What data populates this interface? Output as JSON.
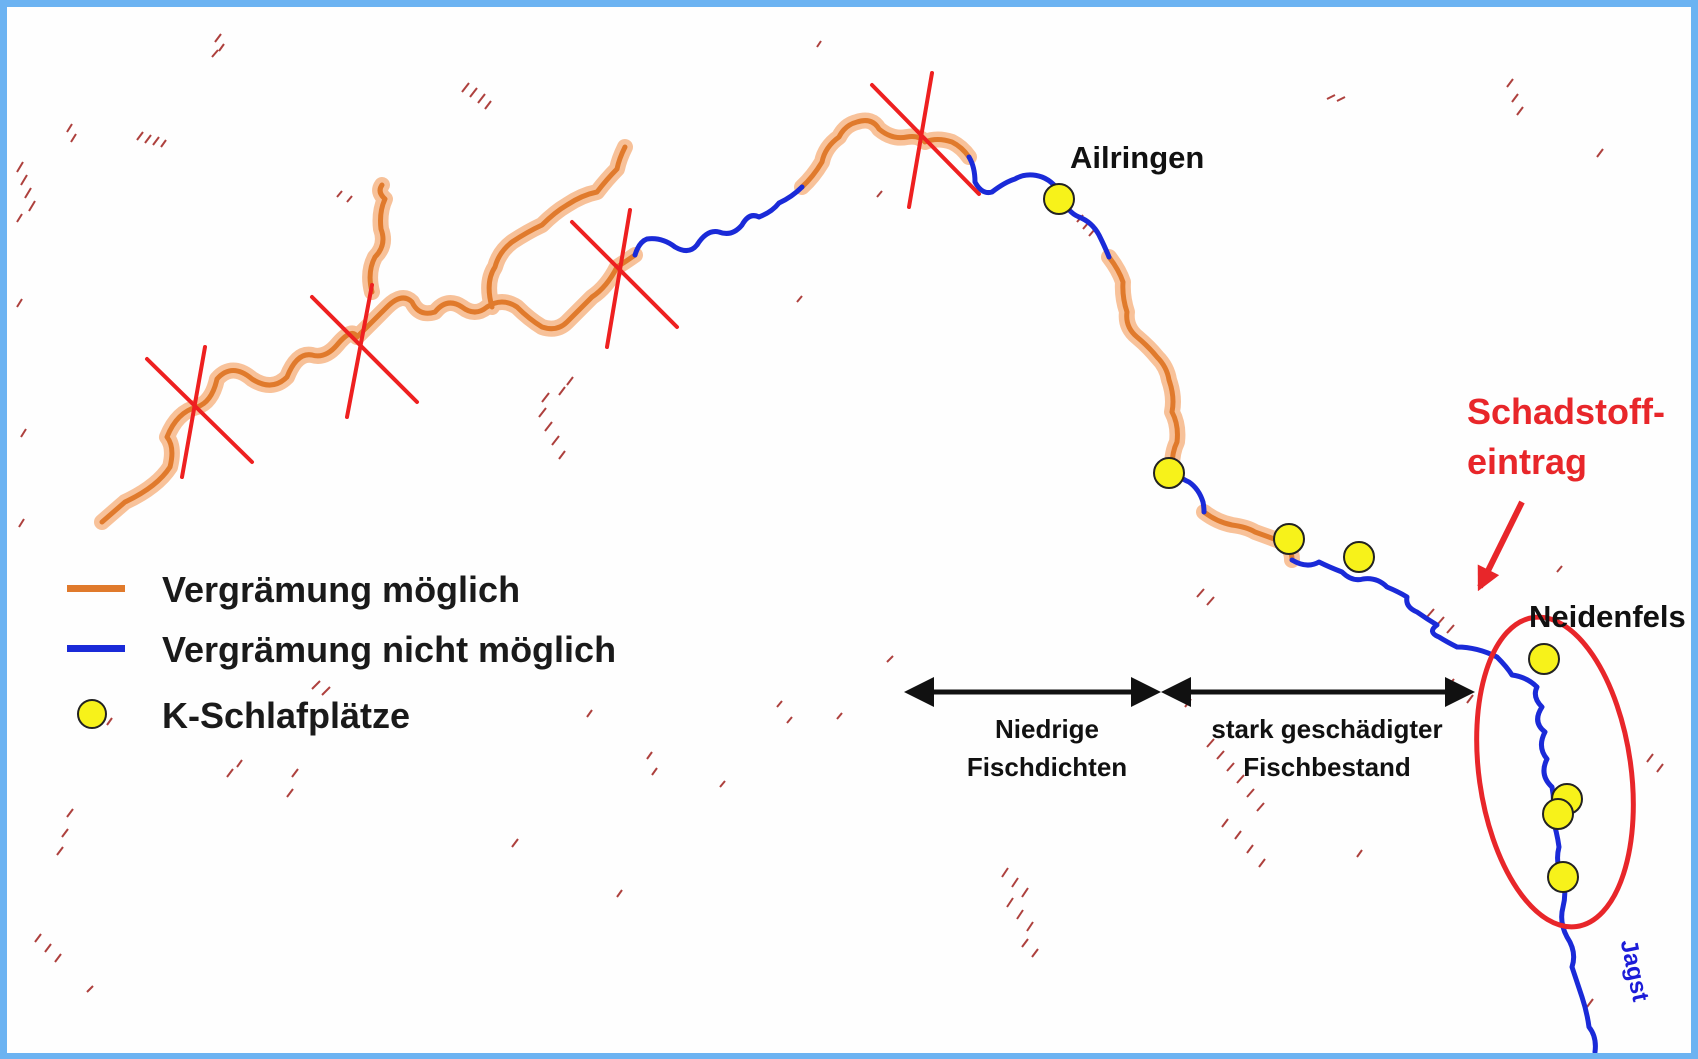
{
  "places": {
    "ailringen": "Ailringen",
    "neidenfels": "Neidenfels"
  },
  "river_name": "Jagst",
  "legend": {
    "possible": {
      "label": "Vergrämung möglich",
      "color": "#e07a2c"
    },
    "not_possible": {
      "label": "Vergrämung nicht möglich",
      "color": "#1a2ad8"
    },
    "roosts": {
      "label": "K-Schlafplätze",
      "color": "#f7f21a"
    }
  },
  "sections": {
    "low": {
      "line1": "Niedrige",
      "line2": "Fischdichten"
    },
    "damaged": {
      "line1": "stark geschädigter",
      "line2": "Fischbestand"
    }
  },
  "alert": {
    "line1": "Schadstoff-",
    "line2": "eintrag",
    "color": "#e8262a"
  },
  "colors": {
    "frame": "#6cb3f2",
    "hatching": "#a0201c",
    "cross": "#ee2020",
    "arrows": "#111111"
  }
}
